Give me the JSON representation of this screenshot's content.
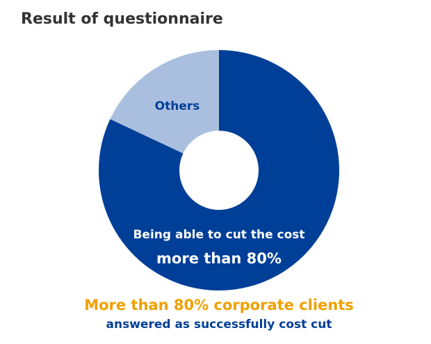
{
  "chart_data": {
    "type": "donut",
    "title": "Result of questionnaire",
    "categories": [
      "Being able to cut the cost",
      "Others"
    ],
    "values": [
      82,
      18
    ],
    "colors": [
      "#003f98",
      "#aabfdf"
    ],
    "annotation": "more than 80%",
    "footnote": [
      "More than 80% corporate clients",
      "answered as successfully cost cut"
    ]
  }
}
